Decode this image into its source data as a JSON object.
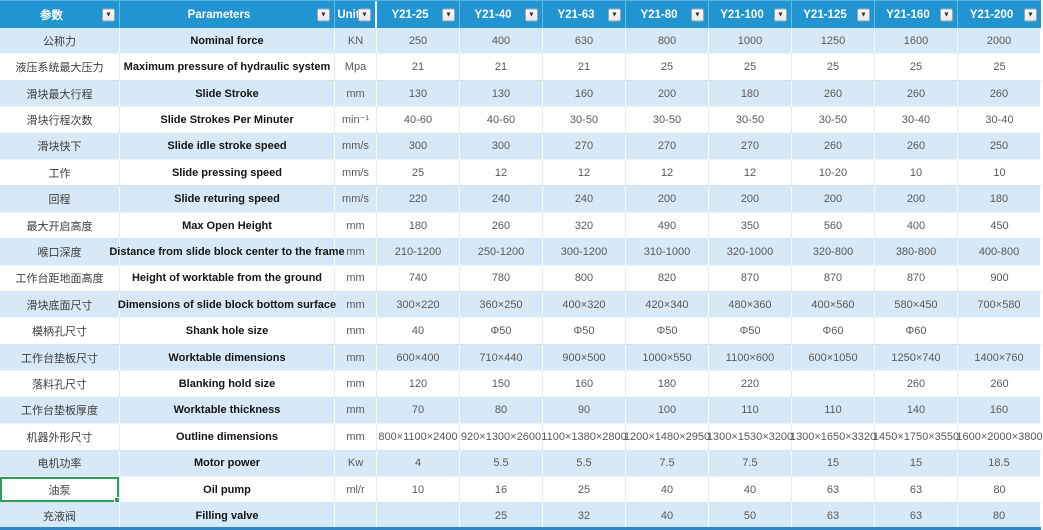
{
  "table": {
    "header": {
      "filter_icon": "▼",
      "columns": [
        {
          "label": "参数"
        },
        {
          "label": "Parameters"
        },
        {
          "label": "Unit"
        },
        {
          "label": "Y21-25"
        },
        {
          "label": "Y21-40"
        },
        {
          "label": "Y21-63"
        },
        {
          "label": "Y21-80"
        },
        {
          "label": "Y21-100"
        },
        {
          "label": "Y21-125"
        },
        {
          "label": "Y21-160"
        },
        {
          "label": "Y21-200"
        }
      ]
    },
    "rows": [
      {
        "cn": "公称力",
        "en": "Nominal force",
        "unit": "KN",
        "values": [
          "250",
          "400",
          "630",
          "800",
          "1000",
          "1250",
          "1600",
          "2000"
        ]
      },
      {
        "cn": "液压系统最大压力",
        "en": "Maximum pressure of hydraulic system",
        "unit": "Mpa",
        "values": [
          "21",
          "21",
          "21",
          "25",
          "25",
          "25",
          "25",
          "25"
        ]
      },
      {
        "cn": "滑块最大行程",
        "en": "Slide Stroke",
        "unit": "mm",
        "values": [
          "130",
          "130",
          "160",
          "200",
          "180",
          "260",
          "260",
          "260"
        ]
      },
      {
        "cn": "滑块行程次数",
        "en": "Slide Strokes Per Minuter",
        "unit": "min⁻¹",
        "values": [
          "40-60",
          "40-60",
          "30-50",
          "30-50",
          "30-50",
          "30-50",
          "30-40",
          "30-40"
        ]
      },
      {
        "cn": "滑块快下",
        "en": "Slide idle stroke speed",
        "unit": "mm/s",
        "values": [
          "300",
          "300",
          "270",
          "270",
          "270",
          "260",
          "260",
          "250"
        ]
      },
      {
        "cn": "工作",
        "en": "Slide pressing speed",
        "unit": "mm/s",
        "values": [
          "25",
          "12",
          "12",
          "12",
          "12",
          "10-20",
          "10",
          "10"
        ]
      },
      {
        "cn": "回程",
        "en": "Slide returing speed",
        "unit": "mm/s",
        "values": [
          "220",
          "240",
          "240",
          "200",
          "200",
          "200",
          "200",
          "180"
        ]
      },
      {
        "cn": "最大开启高度",
        "en": "Max Open Height",
        "unit": "mm",
        "values": [
          "180",
          "260",
          "320",
          "490",
          "350",
          "560",
          "400",
          "450"
        ]
      },
      {
        "cn": "喉口深度",
        "en": "Distance from slide block center to the frame",
        "unit": "mm",
        "values": [
          "210-1200",
          "250-1200",
          "300-1200",
          "310-1000",
          "320-1000",
          "320-800",
          "380-800",
          "400-800"
        ]
      },
      {
        "cn": "工作台距地面高度",
        "en": "Height of worktable from the ground",
        "unit": "mm",
        "values": [
          "740",
          "780",
          "800",
          "820",
          "870",
          "870",
          "870",
          "900"
        ]
      },
      {
        "cn": "滑块底面尺寸",
        "en": "Dimensions of slide block bottom surface",
        "unit": "mm",
        "values": [
          "300×220",
          "360×250",
          "400×320",
          "420×340",
          "480×360",
          "400×560",
          "580×450",
          "700×580"
        ]
      },
      {
        "cn": "模柄孔尺寸",
        "en": "Shank hole size",
        "unit": "mm",
        "values": [
          "40",
          "Φ50",
          "Φ50",
          "Φ50",
          "Φ50",
          "Φ60",
          "Φ60",
          ""
        ]
      },
      {
        "cn": "工作台垫板尺寸",
        "en": "Worktable dimensions",
        "unit": "mm",
        "values": [
          "600×400",
          "710×440",
          "900×500",
          "1000×550",
          "1100×600",
          "600×1050",
          "1250×740",
          "1400×760"
        ]
      },
      {
        "cn": "落料孔尺寸",
        "en": "Blanking hold size",
        "unit": "mm",
        "values": [
          "120",
          "150",
          "160",
          "180",
          "220",
          "",
          "260",
          "260"
        ]
      },
      {
        "cn": "工作台垫板厚度",
        "en": "Worktable thickness",
        "unit": "mm",
        "values": [
          "70",
          "80",
          "90",
          "100",
          "110",
          "110",
          "140",
          "160"
        ]
      },
      {
        "cn": "机器外形尺寸",
        "en": "Outline dimensions",
        "unit": "mm",
        "values": [
          "800×1100×2400",
          "920×1300×2600",
          "1100×1380×2800",
          "1200×1480×2950",
          "1300×1530×3200",
          "1300×1650×3320",
          "1450×1750×3550",
          "1600×2000×3800"
        ]
      },
      {
        "cn": "电机功率",
        "en": "Motor power",
        "unit": "Kw",
        "values": [
          "4",
          "5.5",
          "5.5",
          "7.5",
          "7.5",
          "15",
          "15",
          "18.5"
        ]
      },
      {
        "cn": "油泵",
        "en": "Oil pump",
        "unit": "ml/r",
        "values": [
          "10",
          "16",
          "25",
          "40",
          "40",
          "63",
          "63",
          "80"
        ]
      },
      {
        "cn": "充液阀",
        "en": "Filling valve",
        "unit": "",
        "values": [
          "",
          "25",
          "32",
          "40",
          "50",
          "63",
          "63",
          "80"
        ]
      }
    ]
  },
  "selection": {
    "row_index": 17,
    "column": "cn"
  },
  "colors": {
    "header_bg": "#2095D2",
    "row_alt_bg": "#D7E9F6",
    "row_bg": "#FFFFFF",
    "grid_line": "#CFE4F4",
    "selection_green": "#2E9E5B",
    "bottom_bar": "#2E86C6",
    "header_text": "#FFFFFF"
  }
}
